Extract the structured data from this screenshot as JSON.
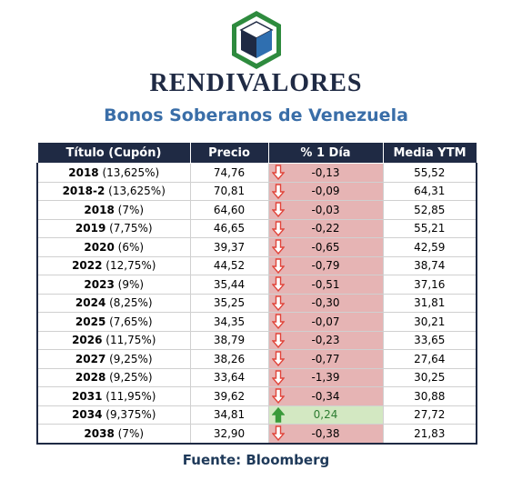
{
  "brand": "RENDIVALORES",
  "subtitle": "Bonos Soberanos de Venezuela",
  "table": {
    "headers": [
      "Título (Cupón)",
      "Precio",
      "% 1 Día",
      "Media YTM"
    ],
    "rows": [
      {
        "year": "2018",
        "coupon": "(13,625%)",
        "price": "74,76",
        "change": "-0,13",
        "direction": "down",
        "ytm": "55,52"
      },
      {
        "year": "2018-2",
        "coupon": "(13,625%)",
        "price": "70,81",
        "change": "-0,09",
        "direction": "down",
        "ytm": "64,31"
      },
      {
        "year": "2018",
        "coupon": "(7%)",
        "price": "64,60",
        "change": "-0,03",
        "direction": "down",
        "ytm": "52,85"
      },
      {
        "year": "2019",
        "coupon": "(7,75%)",
        "price": "46,65",
        "change": "-0,22",
        "direction": "down",
        "ytm": "55,21"
      },
      {
        "year": "2020",
        "coupon": "(6%)",
        "price": "39,37",
        "change": "-0,65",
        "direction": "down",
        "ytm": "42,59"
      },
      {
        "year": "2022",
        "coupon": "(12,75%)",
        "price": "44,52",
        "change": "-0,79",
        "direction": "down",
        "ytm": "38,74"
      },
      {
        "year": "2023",
        "coupon": "(9%)",
        "price": "35,44",
        "change": "-0,51",
        "direction": "down",
        "ytm": "37,16"
      },
      {
        "year": "2024",
        "coupon": "(8,25%)",
        "price": "35,25",
        "change": "-0,30",
        "direction": "down",
        "ytm": "31,81"
      },
      {
        "year": "2025",
        "coupon": "(7,65%)",
        "price": "34,35",
        "change": "-0,07",
        "direction": "down",
        "ytm": "30,21"
      },
      {
        "year": "2026",
        "coupon": "(11,75%)",
        "price": "38,79",
        "change": "-0,23",
        "direction": "down",
        "ytm": "33,65"
      },
      {
        "year": "2027",
        "coupon": "(9,25%)",
        "price": "38,26",
        "change": "-0,77",
        "direction": "down",
        "ytm": "27,64"
      },
      {
        "year": "2028",
        "coupon": "(9,25%)",
        "price": "33,64",
        "change": "-1,39",
        "direction": "down",
        "ytm": "30,25"
      },
      {
        "year": "2031",
        "coupon": "(11,95%)",
        "price": "39,62",
        "change": "-0,34",
        "direction": "down",
        "ytm": "30,88"
      },
      {
        "year": "2034",
        "coupon": "(9,375%)",
        "price": "34,81",
        "change": "0,24",
        "direction": "up",
        "ytm": "27,72"
      },
      {
        "year": "2038",
        "coupon": "(7%)",
        "price": "32,90",
        "change": "-0,38",
        "direction": "down",
        "ytm": "21,83"
      }
    ]
  },
  "source": "Fuente: Bloomberg",
  "colors": {
    "header_bg": "#1f2a44",
    "subtitle": "#3a6ea8",
    "down_cell": "#e6b4b4",
    "up_cell": "#d3e8c2",
    "down_arrow": "#e0443a",
    "up_arrow": "#3a9a3a",
    "logo_hex": "#2e8b3e",
    "logo_cube_blue": "#2f6fb0",
    "logo_cube_dark": "#1f2a44"
  },
  "icons": {
    "logo": "hexagon-cube-logo",
    "down": "arrow-down-icon",
    "up": "arrow-up-icon"
  }
}
